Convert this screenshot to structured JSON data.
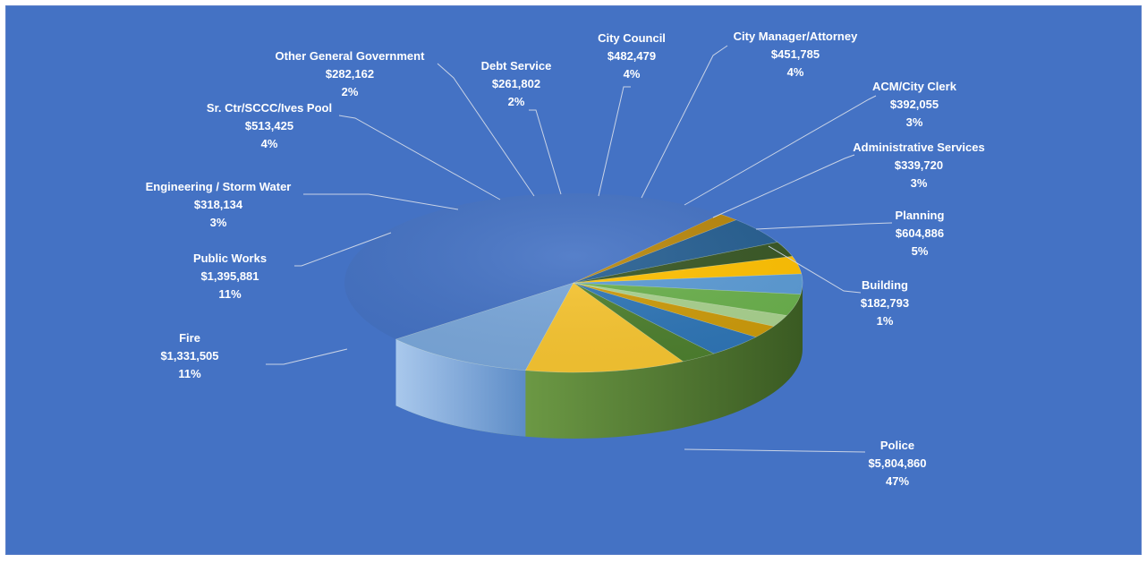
{
  "chart_data": {
    "type": "pie",
    "style": "3d",
    "legend": "none",
    "background_color": "#4472c4",
    "slices": [
      {
        "label": "Police",
        "value": 5804860,
        "value_text": "$5,804,860",
        "percent_text": "47%",
        "color": "#8bbf62"
      },
      {
        "label": "Fire",
        "value": 1331505,
        "value_text": "$1,331,505",
        "percent_text": "11%",
        "color": "#7aa7da"
      },
      {
        "label": "Public Works",
        "value": 1395881,
        "value_text": "$1,395,881",
        "percent_text": "11%",
        "color": "#f7c531"
      },
      {
        "label": "Engineering / Storm Water",
        "value": 318134,
        "value_text": "$318,134",
        "percent_text": "3%",
        "color": "#4d7f2e"
      },
      {
        "label": "Sr. Ctr/SCCC/Ives Pool",
        "value": 513425,
        "value_text": "$513,425",
        "percent_text": "4%",
        "color": "#2e75b6"
      },
      {
        "label": "Other General Government",
        "value": 282162,
        "value_text": "$282,162",
        "percent_text": "2%",
        "color": "#cc9a0a"
      },
      {
        "label": "Debt Service",
        "value": 261802,
        "value_text": "$261,802",
        "percent_text": "2%",
        "color": "#a9d18e"
      },
      {
        "label": "City Council",
        "value": 482479,
        "value_text": "$482,479",
        "percent_text": "4%",
        "color": "#6ab04c"
      },
      {
        "label": "City Manager/Attorney",
        "value": 451785,
        "value_text": "$451,785",
        "percent_text": "4%",
        "color": "#5b9bd5"
      },
      {
        "label": "ACM/City Clerk",
        "value": 392055,
        "value_text": "$392,055",
        "percent_text": "3%",
        "color": "#ffc000"
      },
      {
        "label": "Administrative Services",
        "value": 339720,
        "value_text": "$339,720",
        "percent_text": "3%",
        "color": "#375623"
      },
      {
        "label": "Planning",
        "value": 604886,
        "value_text": "$604,886",
        "percent_text": "5%",
        "color": "#255e91"
      },
      {
        "label": "Building",
        "value": 182793,
        "value_text": "$182,793",
        "percent_text": "1%",
        "color": "#b8860b"
      }
    ]
  }
}
